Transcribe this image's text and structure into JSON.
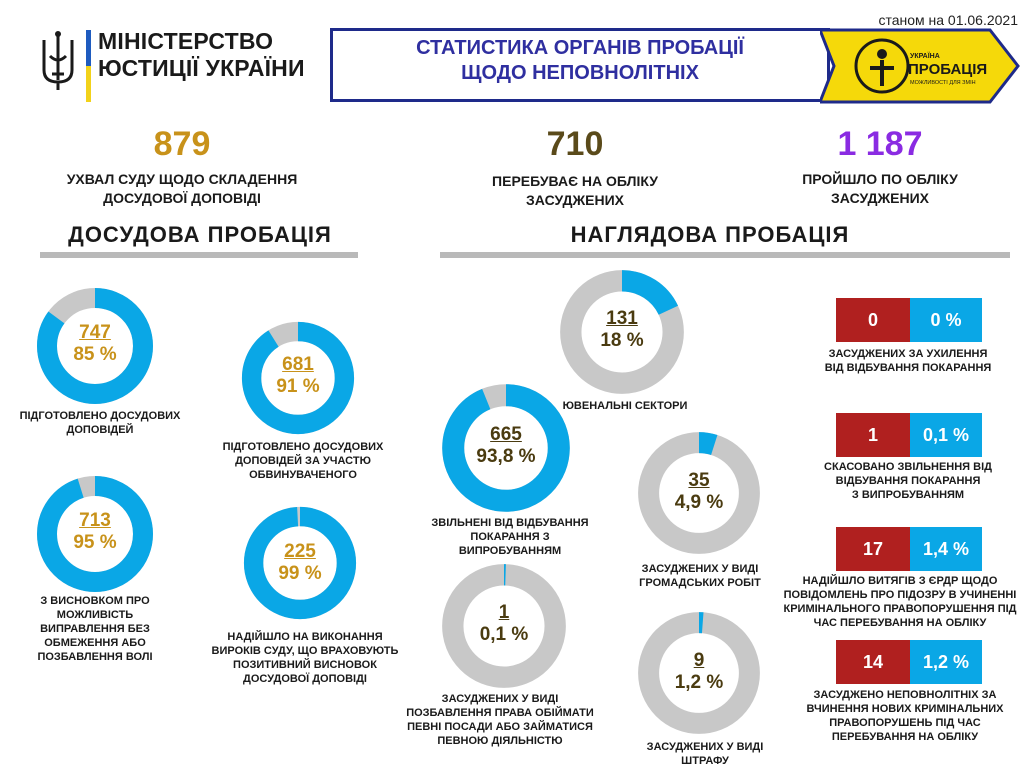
{
  "header": {
    "date": "станом на 01.06.2021",
    "ministry_line1": "МІНІСТЕРСТВО",
    "ministry_line2": "ЮСТИЦІЇ УКРАЇНИ",
    "title_line1": "СТАТИСТИКА ОРГАНІВ ПРОБАЦІЇ",
    "title_line2": "ЩОДО НЕПОВНОЛІТНІХ",
    "logo_small": "УКРАЇНА",
    "logo_main": "ПРОБАЦІЯ",
    "logo_tagline": "МОЖЛИВОСТІ ДЛЯ ЗМІН"
  },
  "colors": {
    "gold": "#c8921a",
    "brown": "#5a4a1a",
    "purple": "#8a2be2",
    "blue": "#0aa7e6",
    "grey": "#c8c8c8",
    "red": "#b0201f"
  },
  "totals": [
    {
      "value": "879",
      "label_line1": "УХВАЛ СУДУ ЩОДО СКЛАДЕННЯ",
      "label_line2": "ДОСУДОВОЇ ДОПОВІДІ"
    },
    {
      "value": "710",
      "label_line1": "ПЕРЕБУВАЄ НА ОБЛІКУ",
      "label_line2": "ЗАСУДЖЕНИХ"
    },
    {
      "value": "1 187",
      "label_line1": "ПРОЙШЛО ПО ОБЛІКУ",
      "label_line2": "ЗАСУДЖЕНИХ"
    }
  ],
  "sections": {
    "pretrial": "ДОСУДОВА  ПРОБАЦІЯ",
    "supervisory": "НАГЛЯДОВА  ПРОБАЦІЯ"
  },
  "chart_data": [
    {
      "type": "pie",
      "title": "ДОСУДОВА  ПРОБАЦІЯ",
      "items": [
        {
          "count": "747",
          "percent_label": "85 %",
          "percent": 85,
          "caption": [
            "ПІДГОТОВЛЕНО ДОСУДОВИХ",
            "ДОПОВІДЕЙ"
          ]
        },
        {
          "count": "681",
          "percent_label": "91 %",
          "percent": 91,
          "caption": [
            "ПІДГОТОВЛЕНО ДОСУДОВИХ",
            "ДОПОВІДЕЙ ЗА УЧАСТЮ",
            "ОБВИНУВАЧЕНОГО"
          ]
        },
        {
          "count": "713",
          "percent_label": "95 %",
          "percent": 95,
          "caption": [
            "З ВИСНОВКОМ ПРО",
            "МОЖЛИВІСТЬ",
            "ВИПРАВЛЕННЯ БЕЗ",
            "ОБМЕЖЕННЯ АБО",
            "ПОЗБАВЛЕННЯ ВОЛІ"
          ]
        },
        {
          "count": "225",
          "percent_label": "99 %",
          "percent": 99,
          "caption": [
            "НАДІЙШЛО НА ВИКОНАННЯ",
            "ВИРОКІВ СУДУ, ЩО ВРАХОВУЮТЬ",
            "ПОЗИТИВНИЙ ВИСНОВОК",
            "ДОСУДОВОЇ ДОПОВІДІ"
          ]
        }
      ]
    },
    {
      "type": "pie",
      "title": "НАГЛЯДОВА  ПРОБАЦІЯ",
      "items": [
        {
          "count": "131",
          "percent_label": "18 %",
          "percent": 18,
          "caption": [
            "ЮВЕНАЛЬНІ СЕКТОРИ"
          ]
        },
        {
          "count": "665",
          "percent_label": "93,8 %",
          "percent": 93.8,
          "caption": [
            "ЗВІЛЬНЕНІ  ВІД ВІДБУВАННЯ",
            "ПОКАРАННЯ З",
            "ВИПРОБУВАННЯМ"
          ]
        },
        {
          "count": "35",
          "percent_label": "4,9 %",
          "percent": 4.9,
          "caption": [
            "ЗАСУДЖЕНИХ  У ВИДІ",
            "ГРОМАДСЬКИХ РОБІТ"
          ]
        },
        {
          "count": "1",
          "percent_label": "0,1 %",
          "percent": 0.1,
          "caption": [
            "ЗАСУДЖЕНИХ  У ВИДІ",
            "ПОЗБАВЛЕННЯ  ПРАВА ОБІЙМАТИ",
            "ПЕВНІ ПОСАДИ АБО ЗАЙМАТИСЯ",
            "ПЕВНОЮ ДІЯЛЬНІСТЮ"
          ]
        },
        {
          "count": "9",
          "percent_label": "1,2 %",
          "percent": 1.2,
          "caption": [
            "ЗАСУДЖЕНИХ  У ВИДІ",
            "ШТРАФУ"
          ]
        }
      ]
    }
  ],
  "stat_boxes": [
    {
      "count": "0",
      "percent": "0 %",
      "caption": [
        "ЗАСУДЖЕНИХ  ЗА УХИЛЕННЯ",
        "ВІД ВІДБУВАННЯ  ПОКАРАННЯ"
      ]
    },
    {
      "count": "1",
      "percent": "0,1 %",
      "caption": [
        "СКАСОВАНО ЗВІЛЬНЕННЯ  ВІД",
        "ВІДБУВАННЯ  ПОКАРАННЯ",
        "З ВИПРОБУВАННЯМ"
      ]
    },
    {
      "count": "17",
      "percent": "1,4 %",
      "caption": [
        "НАДІЙШЛО ВИТЯГІВ  З ЄРДР ЩОДО",
        "ПОВІДОМЛЕНЬ  ПРО ПІДОЗРУ В УЧИНЕННІ",
        "КРИМІНАЛЬНОГО ПРАВОПОРУШЕННЯ  ПІД",
        "ЧАС ПЕРЕБУВАННЯ  НА ОБЛІКУ"
      ]
    },
    {
      "count": "14",
      "percent": "1,2 %",
      "caption": [
        "ЗАСУДЖЕНО НЕПОВНОЛІТНІХ  ЗА",
        "ВЧИНЕННЯ НОВИХ КРИМІНАЛЬНИХ",
        "ПРАВОПОРУШЕНЬ  ПІД ЧАС",
        "ПЕРЕБУВАННЯ  НА ОБЛІКУ"
      ]
    }
  ]
}
